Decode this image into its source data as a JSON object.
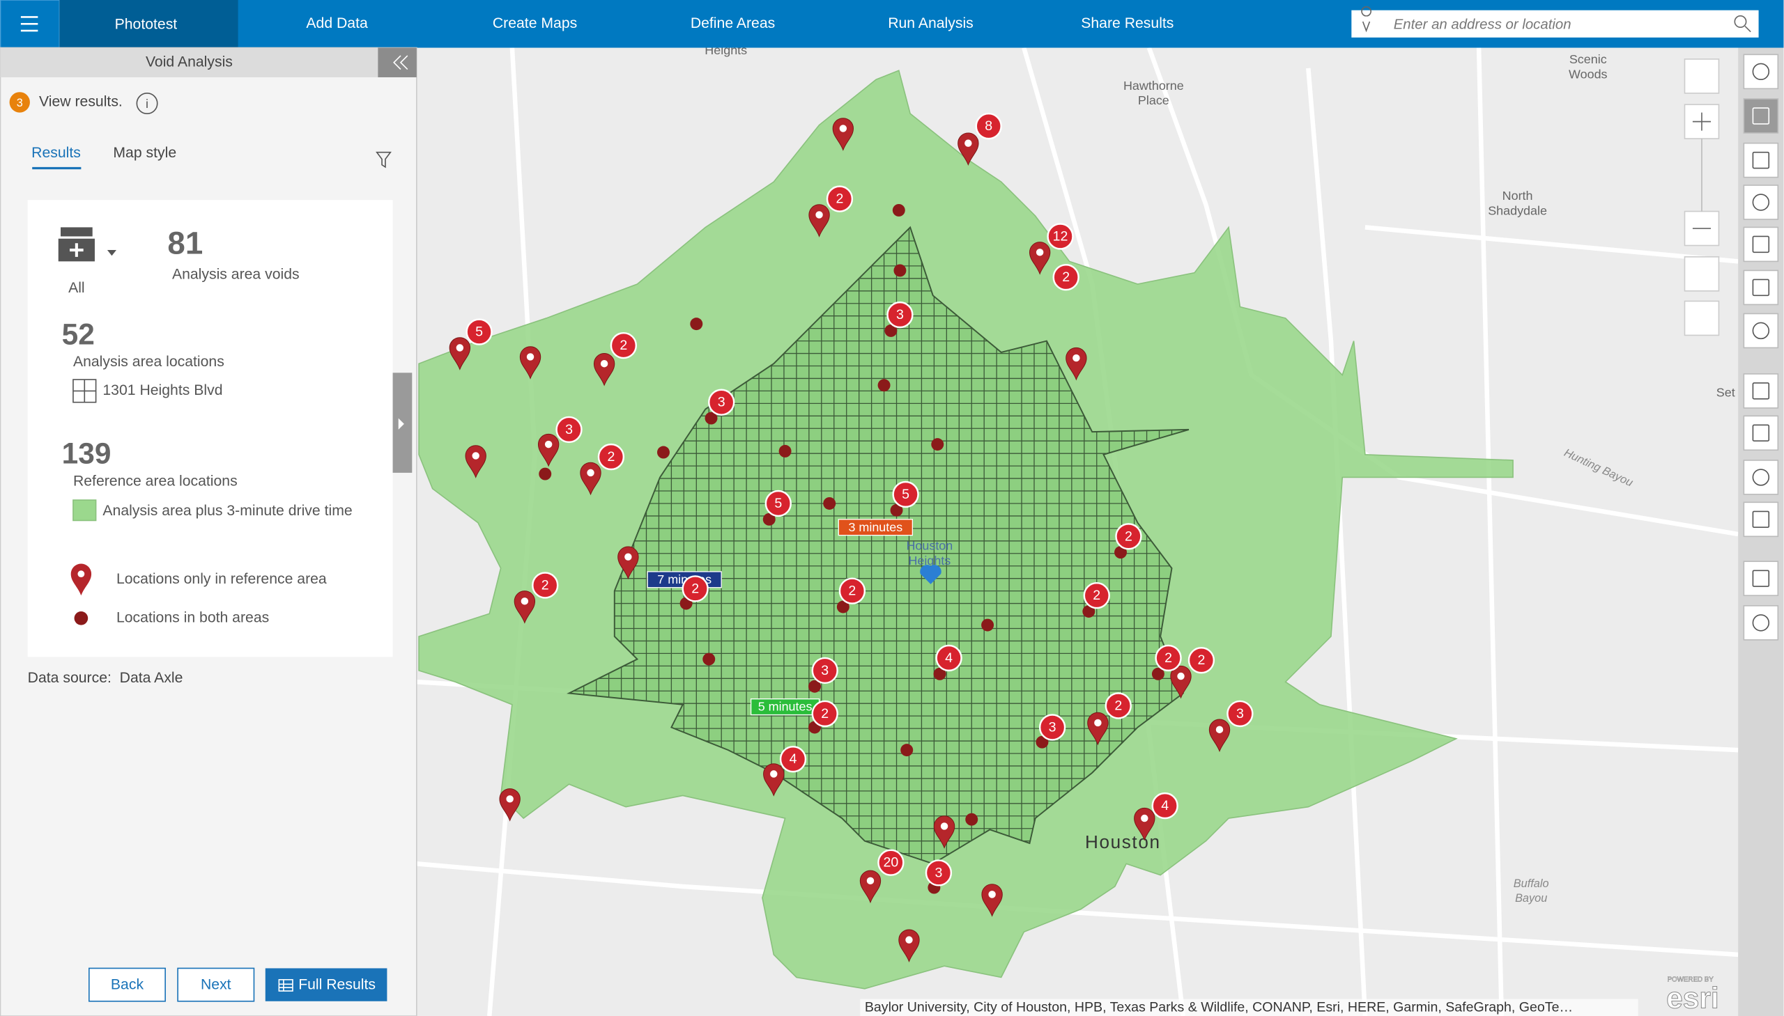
{
  "nav": {
    "app_name": "Phototest",
    "tabs": [
      "Add Data",
      "Create Maps",
      "Define Areas",
      "Run Analysis",
      "Share Results"
    ],
    "search_placeholder": "Enter an address or location"
  },
  "panel": {
    "title": "Void Analysis",
    "step": "3",
    "step_text": "View results.",
    "tabs": [
      "Results",
      "Map style"
    ],
    "category": "All",
    "voids": {
      "value": "81",
      "label": "Analysis area voids"
    },
    "analysis": {
      "value": "52",
      "label": "Analysis area locations",
      "area": "1301 Heights Blvd"
    },
    "reference": {
      "value": "139",
      "label": "Reference area locations",
      "area": "Analysis area plus 3-minute drive time"
    },
    "legend": [
      "Locations only in reference area",
      "Locations in both areas"
    ],
    "data_source": "Data source:  Data Axle",
    "buttons": [
      "Back",
      "Next",
      "Full Results"
    ]
  },
  "map": {
    "place_labels": [
      [
        "Heights"
      ],
      [
        "Hawthorne",
        "Place"
      ],
      [
        "Scenic",
        "Woods"
      ],
      [
        "North",
        "Shadydale"
      ],
      [
        "Houston",
        "Heights"
      ],
      [
        "Houston"
      ],
      [
        "Set"
      ]
    ],
    "water_labels": [
      [
        "Hunting Bayou"
      ],
      [
        "Buffalo",
        "Bayou"
      ]
    ],
    "drive_times": [
      "3 minutes",
      "7 minutes",
      "5 minutes"
    ],
    "clusters": [
      8,
      2,
      12,
      2,
      5,
      2,
      3,
      3,
      3,
      2,
      5,
      5,
      2,
      2,
      2,
      2,
      2,
      3,
      4,
      2,
      2,
      2,
      3,
      2,
      3,
      4,
      4,
      20,
      3
    ],
    "attribution": "Baylor University, City of Houston, HPB, Texas Parks & Wildlife, CONANP, Esri, HERE, Garmin, SafeGraph, GeoTe…",
    "logo": [
      "POWERED BY",
      "esri"
    ]
  }
}
